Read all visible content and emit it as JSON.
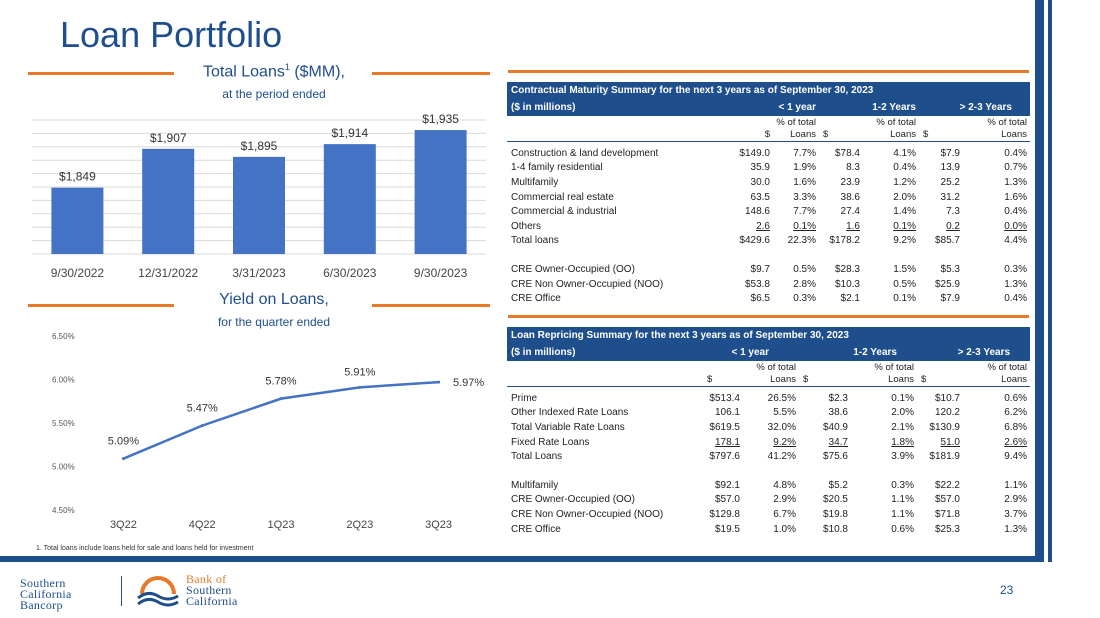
{
  "page": {
    "title": "Loan Portfolio",
    "page_number": "23",
    "footnote": "1. Total loans include loans held for sale and loans held for investment",
    "colors": {
      "primary": "#1f4e8c",
      "accent": "#e8792b",
      "bar": "#4472c4"
    }
  },
  "loans_chart": {
    "title_main": "Total Loans",
    "title_sup": "1",
    "title_tail": " ($MM),",
    "subtitle": "at the period ended"
  },
  "yield_chart": {
    "title": "Yield on Loans,",
    "subtitle": "for the quarter ended"
  },
  "chart_data": [
    {
      "type": "bar",
      "title": "Total Loans1 ($MM),",
      "subtitle": "at the period ended",
      "categories": [
        "9/30/2022",
        "12/31/2022",
        "3/31/2023",
        "6/30/2023",
        "9/30/2023"
      ],
      "values": [
        1849,
        1907,
        1895,
        1914,
        1935
      ],
      "labels": [
        "$1,849",
        "$1,907",
        "$1,895",
        "$1,914",
        "$1,935"
      ],
      "ylim": [
        1750,
        1950
      ],
      "grid": true
    },
    {
      "type": "line",
      "title": "Yield on Loans,",
      "subtitle": "for the quarter ended",
      "categories": [
        "3Q22",
        "4Q22",
        "1Q23",
        "2Q23",
        "3Q23"
      ],
      "values": [
        5.09,
        5.47,
        5.78,
        5.91,
        5.97
      ],
      "labels": [
        "5.09%",
        "5.47%",
        "5.78%",
        "5.91%",
        "5.97%"
      ],
      "yticks": [
        "4.50%",
        "5.00%",
        "5.50%",
        "6.00%",
        "6.50%"
      ],
      "ylim": [
        4.5,
        6.5
      ],
      "grid": false
    }
  ],
  "maturity_table": {
    "title": "Contractual Maturity Summary for the next 3 years as of September 30, 2023",
    "unit": "($ in millions)",
    "groups": [
      "< 1 year",
      "1-2 Years",
      "> 2-3 Years"
    ],
    "pct_label_1": "% of total",
    "pct_label_2": "Loans",
    "dollar": "$",
    "rows": [
      [
        "Construction & land development",
        "$149.0",
        "7.7%",
        "$78.4",
        "4.1%",
        "$7.9",
        "0.4%"
      ],
      [
        "1-4 family residential",
        "35.9",
        "1.9%",
        "8.3",
        "0.4%",
        "13.9",
        "0.7%"
      ],
      [
        "Multifamily",
        "30.0",
        "1.6%",
        "23.9",
        "1.2%",
        "25.2",
        "1.3%"
      ],
      [
        "Commercial real estate",
        "63.5",
        "3.3%",
        "38.6",
        "2.0%",
        "31.2",
        "1.6%"
      ],
      [
        "Commercial & industrial",
        "148.6",
        "7.7%",
        "27.4",
        "1.4%",
        "7.3",
        "0.4%"
      ],
      [
        "Others",
        "2.6",
        "0.1%",
        "1.6",
        "0.1%",
        "0.2",
        "0.0%"
      ],
      [
        "Total loans",
        "$429.6",
        "22.3%",
        "$178.2",
        "9.2%",
        "$85.7",
        "4.4%"
      ]
    ],
    "cre_rows": [
      [
        "CRE Owner-Occupied (OO)",
        "$9.7",
        "0.5%",
        "$28.3",
        "1.5%",
        "$5.3",
        "0.3%"
      ],
      [
        "CRE Non Owner-Occupied (NOO)",
        "$53.8",
        "2.8%",
        "$10.3",
        "0.5%",
        "$25.9",
        "1.3%"
      ],
      [
        "CRE Office",
        "$6.5",
        "0.3%",
        "$2.1",
        "0.1%",
        "$7.9",
        "0.4%"
      ]
    ]
  },
  "repricing_table": {
    "title": "Loan Repricing Summary for the next 3 years as of September 30, 2023",
    "unit": "($ in millions)",
    "groups": [
      "< 1 year",
      "1-2 Years",
      "> 2-3 Years"
    ],
    "pct_label_1": "% of total",
    "pct_label_2": "Loans",
    "dollar": "$",
    "rows": [
      [
        "Prime",
        "$513.4",
        "26.5%",
        "$2.3",
        "0.1%",
        "$10.7",
        "0.6%"
      ],
      [
        "Other Indexed Rate Loans",
        "106.1",
        "5.5%",
        "38.6",
        "2.0%",
        "120.2",
        "6.2%"
      ],
      [
        "Total Variable Rate Loans",
        "$619.5",
        "32.0%",
        "$40.9",
        "2.1%",
        "$130.9",
        "6.8%"
      ],
      [
        "Fixed Rate Loans",
        "178.1",
        "9.2%",
        "34.7",
        "1.8%",
        "51.0",
        "2.6%"
      ],
      [
        "Total Loans",
        "$797.6",
        "41.2%",
        "$75.6",
        "3.9%",
        "$181.9",
        "9.4%"
      ]
    ],
    "cre_rows": [
      [
        "Multifamily",
        "$92.1",
        "4.8%",
        "$5.2",
        "0.3%",
        "$22.2",
        "1.1%"
      ],
      [
        "CRE Owner-Occupied (OO)",
        "$57.0",
        "2.9%",
        "$20.5",
        "1.1%",
        "$57.0",
        "2.9%"
      ],
      [
        "CRE Non Owner-Occupied (NOO)",
        "$129.8",
        "6.7%",
        "$19.8",
        "1.1%",
        "$71.8",
        "3.7%"
      ],
      [
        "CRE Office",
        "$19.5",
        "1.0%",
        "$10.8",
        "0.6%",
        "$25.3",
        "1.3%"
      ]
    ]
  },
  "logos": {
    "left_line1": "Southern",
    "left_line2": "California",
    "left_line3": "Bancorp",
    "right_line1": "Bank of",
    "right_line2": "Southern",
    "right_line3": "California"
  }
}
